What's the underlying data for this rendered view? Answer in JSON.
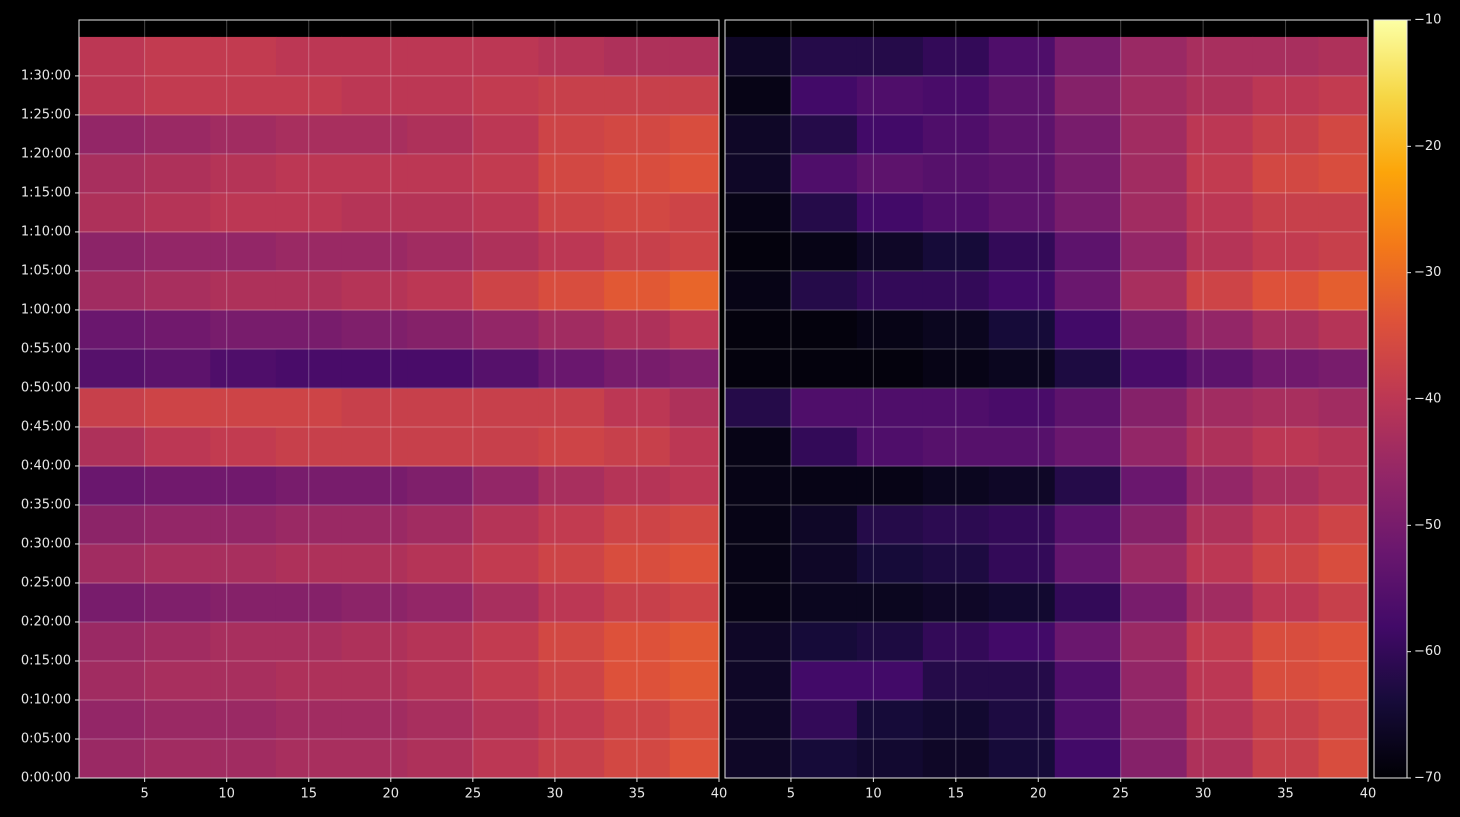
{
  "chart_data": [
    {
      "type": "heatmap",
      "x": [
        3,
        7,
        11,
        15,
        19,
        23,
        27,
        31,
        35,
        39
      ],
      "y": [
        150,
        450,
        750,
        1050,
        1350,
        1650,
        1950,
        2250,
        2550,
        2850,
        3150,
        3450,
        3750,
        4050,
        4350,
        4650,
        4950,
        5250,
        5550
      ],
      "z": [
        [
          -45,
          -44,
          -44,
          -43,
          -43,
          -42,
          -40,
          -38,
          -36,
          -34
        ],
        [
          -46,
          -45,
          -45,
          -44,
          -44,
          -43,
          -41,
          -39,
          -37,
          -35
        ],
        [
          -44,
          -43,
          -43,
          -42,
          -42,
          -41,
          -39,
          -37,
          -34,
          -33
        ],
        [
          -45,
          -44,
          -43,
          -43,
          -42,
          -41,
          -39,
          -36,
          -34,
          -33
        ],
        [
          -50,
          -49,
          -48,
          -48,
          -47,
          -46,
          -43,
          -40,
          -38,
          -37
        ],
        [
          -44,
          -43,
          -43,
          -42,
          -42,
          -41,
          -39,
          -37,
          -35,
          -34
        ],
        [
          -47,
          -46,
          -46,
          -45,
          -45,
          -44,
          -41,
          -39,
          -37,
          -36
        ],
        [
          -52,
          -51,
          -51,
          -50,
          -50,
          -49,
          -46,
          -43,
          -41,
          -40
        ],
        [
          -42,
          -40,
          -39,
          -38,
          -38,
          -38,
          -38,
          -37,
          -38,
          -40
        ],
        [
          -38,
          -37,
          -37,
          -37,
          -38,
          -38,
          -38,
          -38,
          -40,
          -42
        ],
        [
          -55,
          -54,
          -56,
          -57,
          -57,
          -57,
          -55,
          -52,
          -50,
          -49
        ],
        [
          -52,
          -51,
          -50,
          -50,
          -49,
          -48,
          -46,
          -44,
          -42,
          -40
        ],
        [
          -44,
          -43,
          -42,
          -42,
          -41,
          -40,
          -37,
          -35,
          -33,
          -31
        ],
        [
          -47,
          -46,
          -46,
          -45,
          -45,
          -44,
          -42,
          -40,
          -38,
          -37
        ],
        [
          -42,
          -41,
          -40,
          -40,
          -41,
          -41,
          -40,
          -37,
          -36,
          -37
        ],
        [
          -43,
          -42,
          -41,
          -40,
          -40,
          -40,
          -39,
          -36,
          -35,
          -34
        ],
        [
          -46,
          -45,
          -44,
          -43,
          -43,
          -42,
          -40,
          -37,
          -36,
          -35
        ],
        [
          -40,
          -39,
          -39,
          -39,
          -40,
          -40,
          -39,
          -38,
          -38,
          -38
        ],
        [
          -40,
          -39,
          -39,
          -40,
          -40,
          -40,
          -40,
          -41,
          -42,
          -42
        ]
      ],
      "xlim": [
        1,
        40
      ],
      "ylim": [
        0,
        5830
      ],
      "xticks": [
        5,
        10,
        15,
        20,
        25,
        30,
        35,
        40
      ],
      "yticks": [
        {
          "value": 0,
          "label": "0:00:00"
        },
        {
          "value": 300,
          "label": "0:05:00"
        },
        {
          "value": 600,
          "label": "0:10:00"
        },
        {
          "value": 900,
          "label": "0:15:00"
        },
        {
          "value": 1200,
          "label": "0:20:00"
        },
        {
          "value": 1500,
          "label": "0:25:00"
        },
        {
          "value": 1800,
          "label": "0:30:00"
        },
        {
          "value": 2100,
          "label": "0:35:00"
        },
        {
          "value": 2400,
          "label": "0:40:00"
        },
        {
          "value": 2700,
          "label": "0:45:00"
        },
        {
          "value": 3000,
          "label": "0:50:00"
        },
        {
          "value": 3300,
          "label": "0:55:00"
        },
        {
          "value": 3600,
          "label": "1:00:00"
        },
        {
          "value": 3900,
          "label": "1:05:00"
        },
        {
          "value": 4200,
          "label": "1:10:00"
        },
        {
          "value": 4500,
          "label": "1:15:00"
        },
        {
          "value": 4800,
          "label": "1:20:00"
        },
        {
          "value": 5100,
          "label": "1:25:00"
        },
        {
          "value": 5400,
          "label": "1:30:00"
        }
      ],
      "grid": true,
      "colormap": "inferno",
      "clim": [
        -70,
        -10
      ]
    },
    {
      "type": "heatmap",
      "x": [
        3,
        7,
        11,
        15,
        19,
        23,
        27,
        31,
        35,
        39
      ],
      "y": [
        150,
        450,
        750,
        1050,
        1350,
        1650,
        1950,
        2250,
        2550,
        2850,
        3150,
        3450,
        3750,
        4050,
        4350,
        4650,
        4950,
        5250,
        5550
      ],
      "z": [
        [
          -66,
          -64,
          -65,
          -66,
          -64,
          -58,
          -48,
          -42,
          -38,
          -35
        ],
        [
          -66,
          -60,
          -64,
          -65,
          -63,
          -56,
          -47,
          -41,
          -38,
          -36
        ],
        [
          -66,
          -58,
          -58,
          -62,
          -62,
          -56,
          -46,
          -40,
          -35,
          -34
        ],
        [
          -66,
          -64,
          -63,
          -60,
          -58,
          -52,
          -45,
          -39,
          -35,
          -34
        ],
        [
          -68,
          -67,
          -67,
          -66,
          -65,
          -60,
          -50,
          -44,
          -40,
          -38
        ],
        [
          -68,
          -66,
          -64,
          -63,
          -60,
          -53,
          -45,
          -40,
          -37,
          -35
        ],
        [
          -68,
          -66,
          -62,
          -61,
          -60,
          -55,
          -48,
          -42,
          -39,
          -37
        ],
        [
          -68,
          -68,
          -68,
          -67,
          -66,
          -62,
          -52,
          -46,
          -43,
          -41
        ],
        [
          -68,
          -60,
          -56,
          -55,
          -55,
          -52,
          -46,
          -42,
          -40,
          -41
        ],
        [
          -62,
          -56,
          -56,
          -56,
          -57,
          -54,
          -48,
          -44,
          -43,
          -44
        ],
        [
          -69,
          -69,
          -69,
          -68,
          -67,
          -63,
          -57,
          -54,
          -51,
          -50
        ],
        [
          -69,
          -69,
          -68,
          -67,
          -64,
          -58,
          -50,
          -46,
          -43,
          -41
        ],
        [
          -68,
          -62,
          -60,
          -60,
          -58,
          -52,
          -43,
          -37,
          -34,
          -32
        ],
        [
          -69,
          -68,
          -66,
          -64,
          -60,
          -54,
          -46,
          -41,
          -39,
          -38
        ],
        [
          -68,
          -62,
          -58,
          -56,
          -54,
          -50,
          -44,
          -40,
          -38,
          -38
        ],
        [
          -66,
          -56,
          -54,
          -55,
          -54,
          -50,
          -44,
          -39,
          -36,
          -35
        ],
        [
          -66,
          -62,
          -58,
          -56,
          -54,
          -50,
          -44,
          -40,
          -38,
          -36
        ],
        [
          -68,
          -58,
          -56,
          -57,
          -54,
          -48,
          -44,
          -42,
          -40,
          -39
        ],
        [
          -66,
          -62,
          -62,
          -60,
          -56,
          -50,
          -45,
          -43,
          -43,
          -42
        ]
      ],
      "xlim": [
        1,
        40
      ],
      "ylim": [
        0,
        5830
      ],
      "xticks": [
        5,
        10,
        15,
        20,
        25,
        30,
        35,
        40
      ],
      "grid": true,
      "colormap": "inferno",
      "clim": [
        -70,
        -10
      ],
      "colorbar": {
        "lim": [
          -70,
          -10
        ],
        "ticks": [
          {
            "value": -10,
            "label": "−10"
          },
          {
            "value": -20,
            "label": "−20"
          },
          {
            "value": -30,
            "label": "−30"
          },
          {
            "value": -40,
            "label": "−40"
          },
          {
            "value": -50,
            "label": "−50"
          },
          {
            "value": -60,
            "label": "−60"
          },
          {
            "value": -70,
            "label": "−70"
          }
        ]
      }
    }
  ]
}
